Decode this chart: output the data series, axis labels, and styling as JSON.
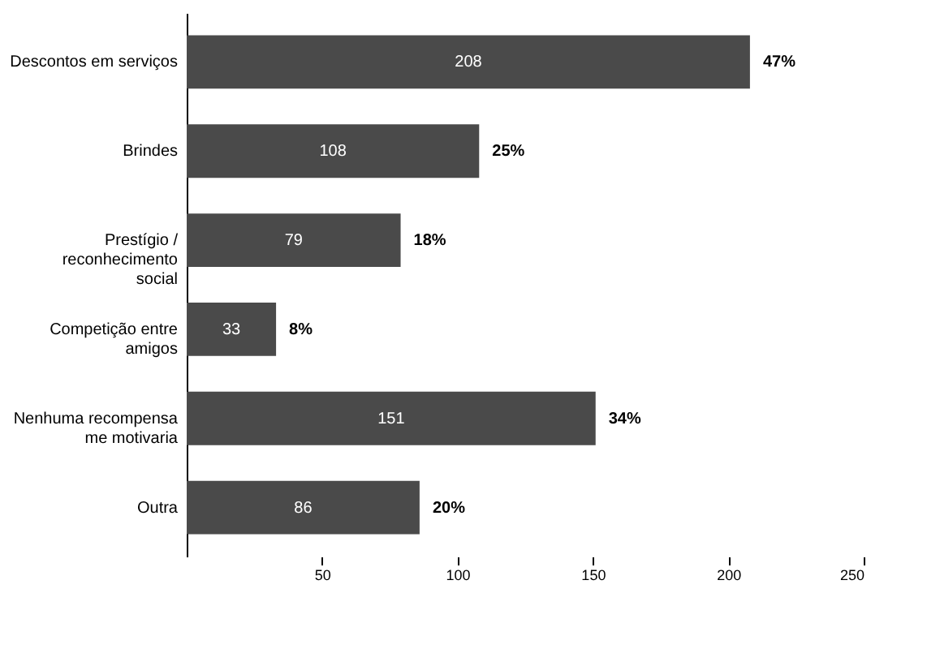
{
  "chart_data": {
    "type": "bar",
    "orientation": "horizontal",
    "categories": [
      "Descontos em serviços",
      "Brindes",
      "Prestígio /\nreconhecimento\nsocial",
      "Competição entre\namigos",
      "Nenhuma recompensa\nme motivaria",
      "Outra"
    ],
    "values": [
      208,
      108,
      79,
      33,
      151,
      86
    ],
    "color": "#4a4a4a",
    "xlim": [
      0,
      250
    ],
    "xticks": [
      50,
      100,
      150,
      200,
      250
    ],
    "data_labels": true,
    "grid": false,
    "annotations": [
      {
        "text": "47%",
        "x": 208,
        "y": "Descontos em serviços"
      },
      {
        "text": "25%",
        "x": 108,
        "y": "Brindes"
      },
      {
        "text": "18%",
        "x": 79,
        "y": "Prestígio /\nreconhecimento\nsocial"
      },
      {
        "text": "8%",
        "x": 33,
        "y": "Competição entre\namigos"
      },
      {
        "text": "34%",
        "x": 151,
        "y": "Nenhuma recompensa\nme motivaria"
      },
      {
        "text": "20%",
        "x": 86,
        "y": "Outra"
      }
    ]
  }
}
